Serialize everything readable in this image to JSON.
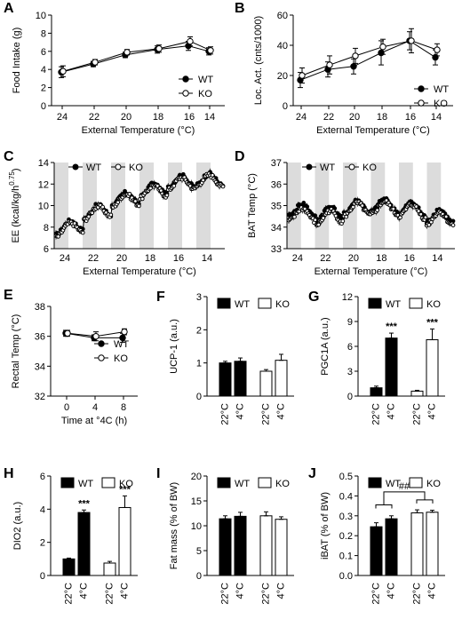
{
  "figure": {
    "title": ""
  },
  "chart_data": [
    {
      "id": "A",
      "panel_label": "A",
      "type": "line",
      "x": [
        24,
        22,
        20,
        18,
        16,
        14
      ],
      "xlabel": "External Temperature (°C)",
      "ylabel": "Food Intake (g)",
      "ylim": [
        0,
        10
      ],
      "yticks": [
        0,
        2,
        4,
        6,
        8,
        10
      ],
      "legend": "bottom-right",
      "series": [
        {
          "name": "WT",
          "marker": "filled",
          "values": [
            3.7,
            4.6,
            5.6,
            6.2,
            6.6,
            6.0
          ],
          "errors": [
            0.6,
            0.3,
            0.3,
            0.4,
            0.5,
            0.4
          ]
        },
        {
          "name": "KO",
          "marker": "open",
          "values": [
            3.8,
            4.8,
            5.9,
            6.3,
            7.1,
            6.1
          ],
          "errors": [
            0.6,
            0.3,
            0.3,
            0.4,
            0.5,
            0.4
          ]
        }
      ]
    },
    {
      "id": "B",
      "panel_label": "B",
      "type": "line",
      "x": [
        24,
        22,
        20,
        18,
        16,
        14
      ],
      "xlabel": "External Temperature (°C)",
      "ylabel": "Loc. Act. (cnts/1000)",
      "ylim": [
        0,
        60
      ],
      "yticks": [
        0,
        20,
        40,
        60
      ],
      "legend": "bottom-right",
      "series": [
        {
          "name": "WT",
          "marker": "filled",
          "values": [
            17,
            24,
            26,
            35,
            43,
            32
          ],
          "errors": [
            5,
            5,
            5,
            8,
            6,
            5
          ]
        },
        {
          "name": "KO",
          "marker": "open",
          "values": [
            20,
            27,
            33,
            39,
            43,
            37
          ],
          "errors": [
            5,
            6,
            5,
            5,
            8,
            4
          ]
        }
      ]
    },
    {
      "id": "C",
      "panel_label": "C",
      "type": "line",
      "xcategories": [
        "24",
        "22",
        "20",
        "18",
        "16",
        "14"
      ],
      "xlabel": "External Temperature (°C)",
      "ylabel": "EE (kcal/kg/h^0.75)",
      "ylabel_main": "EE (kcal/kg/h",
      "ylabel_sup": "0.75",
      "ylabel_close": ")",
      "ylim": [
        6,
        14
      ],
      "yticks": [
        6,
        8,
        10,
        12,
        14
      ],
      "legend": "top-left",
      "shaded_periods": 12,
      "series": [
        {
          "name": "WT",
          "marker": "filled",
          "base": [
            7.8,
            9.3,
            10.5,
            11.3,
            12.2,
            12.4
          ],
          "amp": 1.1
        },
        {
          "name": "KO",
          "marker": "open",
          "base": [
            7.6,
            9.2,
            10.4,
            11.2,
            12.0,
            12.3
          ],
          "amp": 1.1
        }
      ]
    },
    {
      "id": "D",
      "panel_label": "D",
      "type": "line",
      "xcategories": [
        "24",
        "22",
        "20",
        "18",
        "16",
        "14"
      ],
      "xlabel": "External Temperature (°C)",
      "ylabel": "BAT Temp (°C)",
      "ylim": [
        33,
        37
      ],
      "yticks": [
        33,
        34,
        35,
        36,
        37
      ],
      "legend": "top-left",
      "shaded_periods": 12,
      "series": [
        {
          "name": "WT",
          "marker": "filled",
          "base": [
            34.8,
            34.6,
            34.9,
            35.0,
            34.9,
            34.5
          ],
          "amp": 0.6
        },
        {
          "name": "KO",
          "marker": "open",
          "base": [
            34.6,
            34.4,
            34.8,
            34.9,
            34.8,
            34.4
          ],
          "amp": 0.6
        }
      ]
    },
    {
      "id": "E",
      "panel_label": "E",
      "type": "line",
      "x": [
        0,
        4,
        8
      ],
      "xlabel": "Time at °4C (h)",
      "ylabel": "Rectal Temp (°C)",
      "ylim": [
        32,
        38
      ],
      "yticks": [
        32,
        34,
        36,
        38
      ],
      "legend": "bottom-right",
      "series": [
        {
          "name": "WT",
          "marker": "filled",
          "values": [
            36.2,
            35.9,
            35.9
          ],
          "errors": [
            0.2,
            0.2,
            0.3
          ]
        },
        {
          "name": "KO",
          "marker": "open",
          "values": [
            36.2,
            36.0,
            36.3
          ],
          "errors": [
            0.2,
            0.3,
            0.2
          ]
        }
      ]
    },
    {
      "id": "F",
      "panel_label": "F",
      "type": "bar",
      "categories": [
        "22°C",
        "4°C",
        "22°C",
        "4°C"
      ],
      "groups": [
        "WT",
        "WT",
        "KO",
        "KO"
      ],
      "values": [
        1.0,
        1.05,
        0.75,
        1.08
      ],
      "errors": [
        0.05,
        0.1,
        0.05,
        0.18
      ],
      "ylabel": "UCP-1 (a.u.)",
      "ylim": [
        0,
        3
      ],
      "yticks": [
        0,
        1,
        2,
        3
      ],
      "legend": "top",
      "annotations": [
        "",
        "",
        "",
        ""
      ]
    },
    {
      "id": "G",
      "panel_label": "G",
      "type": "bar",
      "categories": [
        "22°C",
        "4°C",
        "22°C",
        "4°C"
      ],
      "groups": [
        "WT",
        "WT",
        "KO",
        "KO"
      ],
      "values": [
        1.0,
        7.0,
        0.6,
        6.8
      ],
      "errors": [
        0.2,
        0.6,
        0.1,
        1.3
      ],
      "ylabel": "PGC1A (a.u.)",
      "ylim": [
        0,
        12
      ],
      "yticks": [
        0,
        3,
        6,
        9,
        12
      ],
      "legend": "top",
      "annotations": [
        "",
        "***",
        "",
        "***"
      ]
    },
    {
      "id": "H",
      "panel_label": "H",
      "type": "bar",
      "categories": [
        "22°C",
        "4°C",
        "22°C",
        "4°C"
      ],
      "groups": [
        "WT",
        "WT",
        "KO",
        "KO"
      ],
      "values": [
        1.0,
        3.8,
        0.75,
        4.1
      ],
      "errors": [
        0.05,
        0.15,
        0.1,
        0.7
      ],
      "ylabel": "DIO2 (a.u.)",
      "ylim": [
        0,
        6
      ],
      "yticks": [
        0,
        2,
        4,
        6
      ],
      "legend": "top",
      "annotations": [
        "",
        "***",
        "",
        "***"
      ]
    },
    {
      "id": "I",
      "panel_label": "I",
      "type": "bar",
      "categories": [
        "22°C",
        "4°C",
        "22°C",
        "4°C"
      ],
      "groups": [
        "WT",
        "WT",
        "KO",
        "KO"
      ],
      "values": [
        11.4,
        11.9,
        12.0,
        11.3
      ],
      "errors": [
        0.6,
        0.8,
        0.8,
        0.5
      ],
      "ylabel": "Fat mass (% of BW)",
      "ylim": [
        0,
        20
      ],
      "yticks": [
        0,
        5,
        10,
        15,
        20
      ],
      "legend": "top",
      "annotations": [
        "",
        "",
        "",
        ""
      ]
    },
    {
      "id": "J",
      "panel_label": "J",
      "type": "bar",
      "categories": [
        "22°C",
        "4°C",
        "22°C",
        "4°C"
      ],
      "groups": [
        "WT",
        "WT",
        "KO",
        "KO"
      ],
      "values": [
        0.245,
        0.285,
        0.315,
        0.318
      ],
      "errors": [
        0.02,
        0.015,
        0.015,
        0.01
      ],
      "ylabel": "iBAT (% of BW)",
      "ylim": [
        0,
        0.5
      ],
      "yticks": [
        0,
        0.1,
        0.2,
        0.3,
        0.4,
        0.5
      ],
      "yticklabels": [
        "0.0",
        "0.1",
        "0.2",
        "0.3",
        "0.4",
        "0.5"
      ],
      "legend": "top",
      "annotations": [
        "",
        "",
        "",
        ""
      ],
      "significance_label": "##"
    }
  ]
}
